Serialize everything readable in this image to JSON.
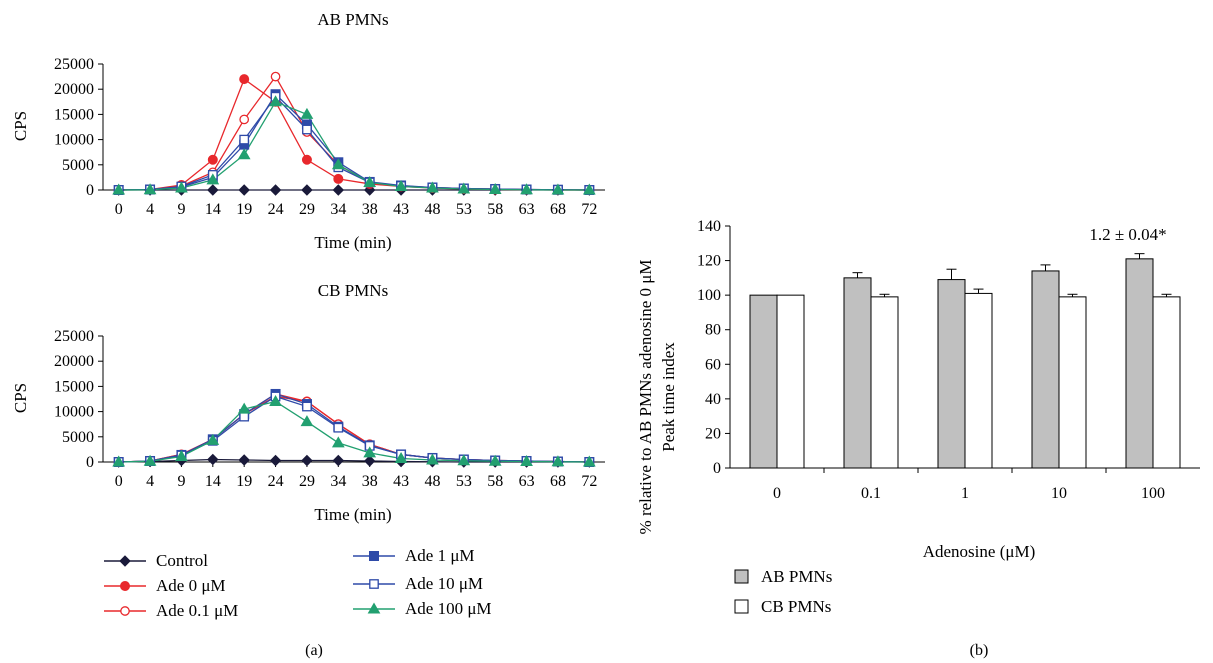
{
  "figure": {
    "panel_a_label": "(a)",
    "panel_b_label": "(b)"
  },
  "legend_a": [
    {
      "name": "Control",
      "color": "#1a1a3a",
      "marker": "diamond"
    },
    {
      "name": "Ade 0 μM",
      "color": "#e8282c",
      "marker": "circle"
    },
    {
      "name": "Ade 0.1 μM",
      "color": "#e8282c",
      "marker": "circle-open"
    },
    {
      "name": "Ade 1 μM",
      "color": "#2e4aa8",
      "marker": "square"
    },
    {
      "name": "Ade 10 μM",
      "color": "#2e4aa8",
      "marker": "square-open"
    },
    {
      "name": "Ade 100 μM",
      "color": "#22a070",
      "marker": "triangle"
    }
  ],
  "legend_b": [
    {
      "name": "AB PMNs",
      "color": "#c0c0c0"
    },
    {
      "name": "CB PMNs",
      "color": "#ffffff"
    }
  ],
  "chart_data": [
    {
      "type": "line",
      "title": "AB PMNs",
      "xlabel": "Time (min)",
      "ylabel": "CPS",
      "ylim": [
        0,
        25000
      ],
      "yticks": [
        "0",
        "5000",
        "10000",
        "15000",
        "20000",
        "25000"
      ],
      "categories": [
        "0",
        "4",
        "9",
        "14",
        "19",
        "24",
        "29",
        "34",
        "38",
        "43",
        "48",
        "53",
        "58",
        "63",
        "68",
        "72"
      ],
      "series": [
        {
          "name": "Control",
          "values": [
            0,
            0,
            0,
            0,
            0,
            0,
            0,
            0,
            0,
            0,
            0,
            0,
            0,
            0,
            0,
            0
          ]
        },
        {
          "name": "Ade 0 μM",
          "values": [
            0,
            100,
            1000,
            6000,
            22000,
            17500,
            6000,
            2200,
            1200,
            700,
            400,
            200,
            100,
            50,
            0,
            0
          ]
        },
        {
          "name": "Ade 0.1 μM",
          "values": [
            0,
            100,
            800,
            3500,
            14000,
            22500,
            11500,
            5000,
            1500,
            800,
            500,
            300,
            200,
            100,
            50,
            0
          ]
        },
        {
          "name": "Ade 1 μM",
          "values": [
            0,
            100,
            600,
            2500,
            9000,
            19000,
            13000,
            5500,
            1600,
            900,
            500,
            300,
            200,
            100,
            50,
            0
          ]
        },
        {
          "name": "Ade 10 μM",
          "values": [
            0,
            100,
            700,
            3000,
            10000,
            18500,
            12000,
            4500,
            1500,
            800,
            500,
            300,
            200,
            100,
            50,
            0
          ]
        },
        {
          "name": "Ade 100 μM",
          "values": [
            0,
            50,
            400,
            2000,
            7000,
            17500,
            15000,
            5000,
            1500,
            700,
            400,
            200,
            100,
            50,
            0,
            0
          ]
        }
      ]
    },
    {
      "type": "line",
      "title": "CB PMNs",
      "xlabel": "Time (min)",
      "ylabel": "CPS",
      "ylim": [
        0,
        25000
      ],
      "yticks": [
        "0",
        "5000",
        "10000",
        "15000",
        "20000",
        "25000"
      ],
      "categories": [
        "0",
        "4",
        "9",
        "14",
        "19",
        "24",
        "29",
        "34",
        "38",
        "43",
        "48",
        "53",
        "58",
        "63",
        "68",
        "72"
      ],
      "series": [
        {
          "name": "Control",
          "values": [
            0,
            100,
            300,
            500,
            400,
            300,
            300,
            300,
            200,
            100,
            50,
            0,
            0,
            0,
            0,
            0
          ]
        },
        {
          "name": "Ade 0 μM",
          "values": [
            0,
            200,
            1500,
            4500,
            9500,
            13000,
            12000,
            7500,
            3500,
            1500,
            800,
            500,
            300,
            200,
            100,
            0
          ]
        },
        {
          "name": "Ade 0.1 μM",
          "values": [
            0,
            200,
            1500,
            4500,
            9500,
            13500,
            12000,
            7500,
            3500,
            1500,
            800,
            500,
            300,
            200,
            100,
            0
          ]
        },
        {
          "name": "Ade 1 μM",
          "values": [
            0,
            200,
            1400,
            4500,
            9500,
            13500,
            11500,
            7000,
            3300,
            1500,
            800,
            500,
            300,
            200,
            100,
            0
          ]
        },
        {
          "name": "Ade 10 μM",
          "values": [
            0,
            200,
            1300,
            4200,
            9000,
            13000,
            11000,
            6800,
            3200,
            1500,
            800,
            500,
            300,
            200,
            100,
            0
          ]
        },
        {
          "name": "Ade 100 μM",
          "values": [
            0,
            150,
            1100,
            4300,
            10500,
            12000,
            8000,
            3800,
            1800,
            700,
            400,
            250,
            150,
            100,
            50,
            0
          ]
        }
      ]
    },
    {
      "type": "bar",
      "title": "",
      "xlabel": "Adenosine (μM)",
      "ylabel": "% relative to AB PMNs adenosine 0 μM",
      "ylabel2": "Peak time index",
      "ylim": [
        0,
        140
      ],
      "yticks": [
        "0",
        "20",
        "40",
        "60",
        "80",
        "100",
        "120",
        "140"
      ],
      "categories": [
        "0",
        "0.1",
        "1",
        "10",
        "100"
      ],
      "series": [
        {
          "name": "AB PMNs",
          "values": [
            100,
            110,
            109,
            114,
            121
          ],
          "errors": [
            0,
            3,
            6,
            3.5,
            3
          ]
        },
        {
          "name": "CB PMNs",
          "values": [
            100,
            99,
            101,
            99,
            99
          ],
          "errors": [
            0,
            1.5,
            2.5,
            1.5,
            1.5
          ]
        }
      ],
      "annotation": "1.2 ± 0.04*"
    }
  ]
}
